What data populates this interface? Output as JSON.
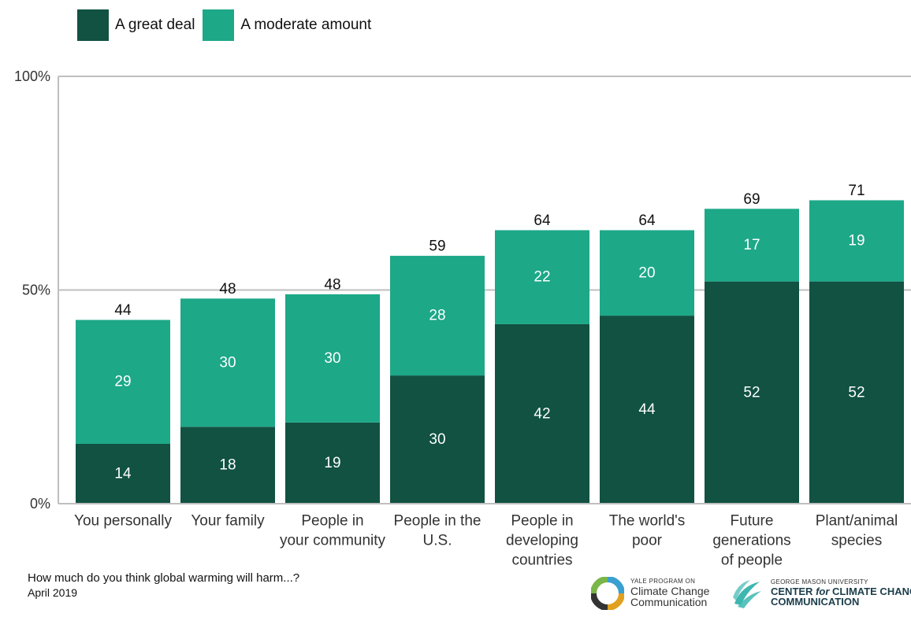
{
  "legend": [
    {
      "label": "A great deal",
      "color": "#115242"
    },
    {
      "label": "A moderate amount",
      "color": "#1da888"
    }
  ],
  "footer": {
    "question": "How much do you think global warming will harm...?",
    "date": "April 2019"
  },
  "logos": {
    "yale": {
      "top": "YALE PROGRAM ON",
      "line1": "Climate Change",
      "line2": "Communication"
    },
    "gmu": {
      "top": "GEORGE MASON UNIVERSITY",
      "line1_a": "CENTER ",
      "line1_b": "for",
      "line1_c": " CLIMATE CHANG",
      "line2": "COMMUNICATION"
    }
  },
  "chart_data": {
    "type": "bar",
    "stacked": true,
    "categories": [
      [
        "You personally"
      ],
      [
        "Your family"
      ],
      [
        "People in",
        "your community"
      ],
      [
        "People in the",
        "U.S."
      ],
      [
        "People in",
        "developing",
        "countries"
      ],
      [
        "The world's",
        "poor"
      ],
      [
        "Future",
        "generations",
        "of people"
      ],
      [
        "Plant/animal",
        "species"
      ]
    ],
    "series": [
      {
        "name": "A great deal",
        "color": "#115242",
        "values": [
          14,
          18,
          19,
          30,
          42,
          44,
          52,
          52
        ]
      },
      {
        "name": "A moderate amount",
        "color": "#1da888",
        "values": [
          29,
          30,
          30,
          28,
          22,
          20,
          17,
          19
        ]
      }
    ],
    "totals": [
      44,
      48,
      48,
      59,
      64,
      64,
      69,
      71
    ],
    "yticks": [
      "0%",
      "50%",
      "100%"
    ],
    "ylim": [
      0,
      100
    ],
    "grid": true,
    "legend_position": "top-left"
  }
}
